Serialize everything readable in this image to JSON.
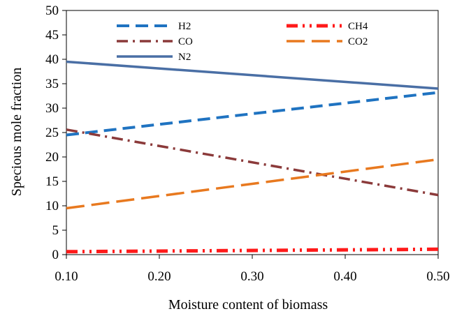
{
  "chart_data": {
    "type": "line",
    "title": "",
    "xlabel": "Moisture content of biomass",
    "ylabel": "Specious mole fraction",
    "xlim": [
      0.1,
      0.5
    ],
    "ylim": [
      0,
      50
    ],
    "x_ticks": [
      "0.10",
      "0.20",
      "0.30",
      "0.40",
      "0.50"
    ],
    "y_ticks": [
      "0",
      "5",
      "10",
      "15",
      "20",
      "25",
      "30",
      "35",
      "40",
      "45",
      "50"
    ],
    "grid": false,
    "legend_position": "top",
    "series": [
      {
        "name": "H2",
        "x": [
          0.1,
          0.5
        ],
        "y": [
          24.5,
          33.2
        ],
        "color": "#1f73c1",
        "style": "dash"
      },
      {
        "name": "CH4",
        "x": [
          0.1,
          0.5
        ],
        "y": [
          0.6,
          1.1
        ],
        "color": "#ff1a1a",
        "style": "dash-dot-dot"
      },
      {
        "name": "CO",
        "x": [
          0.1,
          0.5
        ],
        "y": [
          25.6,
          12.2
        ],
        "color": "#8b3a3a",
        "style": "dash-dot"
      },
      {
        "name": "CO2",
        "x": [
          0.1,
          0.5
        ],
        "y": [
          9.5,
          19.5
        ],
        "color": "#e8791f",
        "style": "long-dash"
      },
      {
        "name": "N2",
        "x": [
          0.1,
          0.5
        ],
        "y": [
          39.5,
          34.0
        ],
        "color": "#4a6fa5",
        "style": "solid"
      }
    ]
  }
}
